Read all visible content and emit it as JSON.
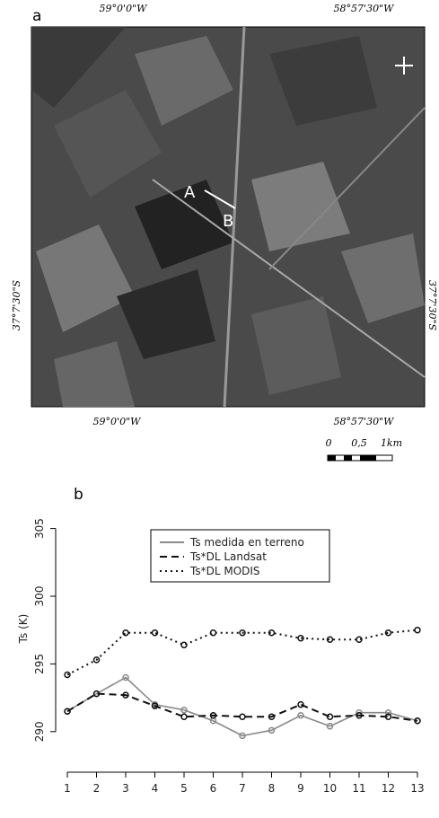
{
  "figure_a": {
    "panel_label": "a",
    "top_left_lon": "59°0'0\"W",
    "top_right_lon": "58°57'30\"W",
    "bottom_left_lon": "59°0'0\"W",
    "bottom_right_lon": "58°57'30\"W",
    "left_lat": "37°7'30\"S",
    "right_lat": "37°7'30\"S",
    "point_a": "A",
    "point_b": "B",
    "scale_labels": [
      "0",
      "0,5",
      "1km"
    ]
  },
  "chart_data": {
    "type": "line",
    "panel_label": "b",
    "y_label": "Ts (K)",
    "x": [
      1,
      2,
      3,
      4,
      5,
      6,
      7,
      8,
      9,
      10,
      11,
      12,
      13
    ],
    "xlim": [
      1,
      13
    ],
    "xticks": [
      1,
      2,
      3,
      4,
      5,
      6,
      7,
      8,
      9,
      10,
      11,
      12,
      13
    ],
    "ylim": [
      288,
      305.9
    ],
    "yticks": [
      290,
      295,
      300,
      305
    ],
    "series": [
      {
        "name": "Ts medida en terreno",
        "color": "#8a8a8a",
        "linestyle": "solid",
        "values": [
          291.5,
          292.8,
          294.0,
          292.0,
          291.6,
          290.8,
          289.7,
          290.1,
          291.2,
          290.4,
          291.4,
          291.4,
          290.8
        ]
      },
      {
        "name": "Ts*DL Landsat",
        "color": "#111111",
        "linestyle": "dashed",
        "values": [
          291.5,
          292.8,
          292.7,
          291.9,
          291.1,
          291.2,
          291.1,
          291.1,
          292.0,
          291.1,
          291.2,
          291.1,
          290.8
        ]
      },
      {
        "name": "Ts*DL MODIS",
        "color": "#111111",
        "linestyle": "dotted",
        "values": [
          294.2,
          295.3,
          297.3,
          297.3,
          296.4,
          297.3,
          297.3,
          297.3,
          296.9,
          296.8,
          296.8,
          297.3,
          297.5
        ]
      }
    ]
  }
}
